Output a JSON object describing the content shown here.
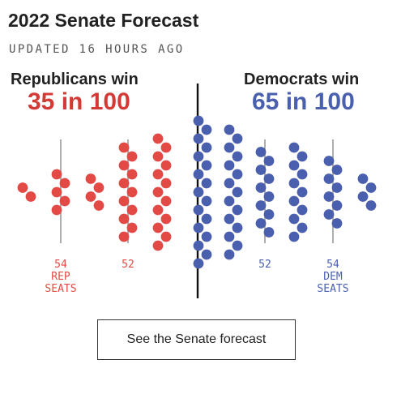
{
  "header": {
    "title": "2022 Senate Forecast",
    "updated": "UPDATED 16 HOURS AGO"
  },
  "republicans": {
    "label": "Republicans win",
    "odds": "35 in 100"
  },
  "democrats": {
    "label": "Democrats win",
    "odds": "65 in 100"
  },
  "colors": {
    "republican": "#e34a46",
    "democrat": "#4a5fad",
    "divider": "#111111",
    "tick": "#999999"
  },
  "chart_data": {
    "type": "scatter",
    "title": "2022 Senate Forecast",
    "total_dots": 100,
    "series": [
      {
        "party": "republican",
        "columns": [
          {
            "dots": 2
          },
          {
            "dots": 5
          },
          {
            "dots": 4
          },
          {
            "dots": 11
          },
          {
            "dots": 13
          }
        ]
      },
      {
        "party": "democrat",
        "columns": [
          {
            "dots": 17
          },
          {
            "dots": 15
          },
          {
            "dots": 10
          },
          {
            "dots": 11
          },
          {
            "dots": 8
          },
          {
            "dots": 4
          }
        ]
      }
    ],
    "ticks": [
      {
        "party": "republican",
        "lines": [
          "54",
          "REP",
          "SEATS"
        ]
      },
      {
        "party": "republican",
        "lines": [
          "52"
        ]
      },
      {
        "party": "democrat",
        "lines": [
          "52"
        ]
      },
      {
        "party": "democrat",
        "lines": [
          "54",
          "DEM",
          "SEATS"
        ]
      }
    ]
  },
  "cta": {
    "label": "See the Senate forecast"
  }
}
